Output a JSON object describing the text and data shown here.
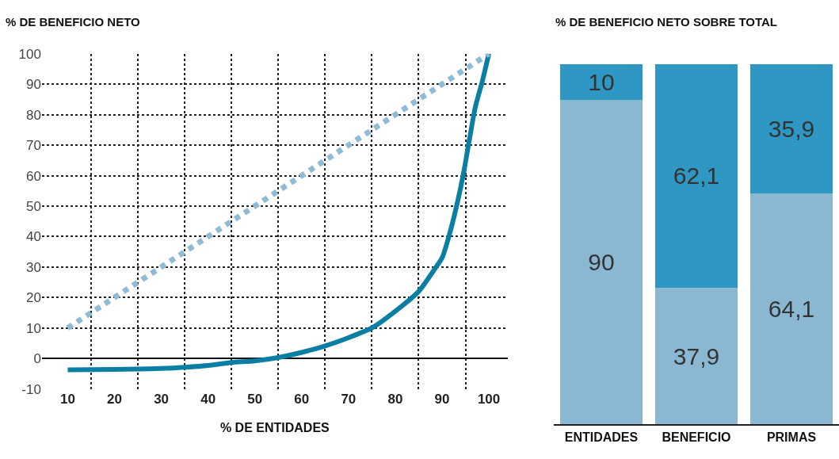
{
  "chart_data": [
    {
      "type": "line",
      "title": "% DE BENEFICIO NETO",
      "xlabel": "% DE ENTIDADES",
      "series": [
        {
          "color": "#0a7fa3",
          "line_style": "solid",
          "x": [
            10,
            20,
            25,
            30,
            35,
            40,
            45,
            50,
            55,
            60,
            65,
            70,
            75,
            80,
            85,
            88.5,
            90,
            91.3,
            93.1,
            94.6,
            95.7,
            97.1,
            98.6,
            100
          ],
          "values": [
            -3.7,
            -3.6,
            -3.5,
            -3.3,
            -2.9,
            -2.3,
            -1.3,
            -0.8,
            0.3,
            2,
            4.1,
            6.8,
            10,
            15.5,
            22,
            29.5,
            33,
            39.2,
            50,
            60.9,
            70.6,
            82.5,
            91,
            100
          ]
        },
        {
          "color": "#8fbcd4",
          "line_style": "dotted",
          "x": [
            10,
            100
          ],
          "values": [
            10,
            100
          ]
        }
      ],
      "xlim": [
        4.5,
        104
      ],
      "ylim": [
        -10,
        100
      ],
      "xticks": [
        10,
        20,
        30,
        40,
        50,
        60,
        70,
        80,
        90,
        100,
        {
          "value": 15,
          "label": null
        },
        {
          "value": 25,
          "label": null
        },
        {
          "value": 35,
          "label": null
        },
        {
          "value": 45,
          "label": null
        },
        {
          "value": 55,
          "label": null
        },
        {
          "value": 65,
          "label": null
        },
        {
          "value": 75,
          "label": null
        },
        {
          "value": 85,
          "label": null
        },
        {
          "value": 95,
          "label": null
        }
      ],
      "yticks": [
        -10,
        0,
        10,
        20,
        30,
        40,
        50,
        60,
        70,
        80,
        90,
        100
      ],
      "grid": true
    },
    {
      "type": "bar",
      "title": "% DE BENEFICIO NETO SOBRE TOTAL",
      "stacked": true,
      "categories": [
        "ENTIDADES",
        "BENEFICIO",
        "PRIMAS"
      ],
      "series": [
        {
          "color": "#8ab8d2",
          "values": [
            90,
            37.9,
            64.1
          ],
          "value_labels": [
            "90",
            "37,9",
            "64,1"
          ]
        },
        {
          "color": "#2f97c3",
          "values": [
            10,
            62.1,
            35.9
          ],
          "value_labels": [
            "10",
            "62,1",
            "35,9"
          ]
        }
      ],
      "tick_labels": "x"
    }
  ]
}
